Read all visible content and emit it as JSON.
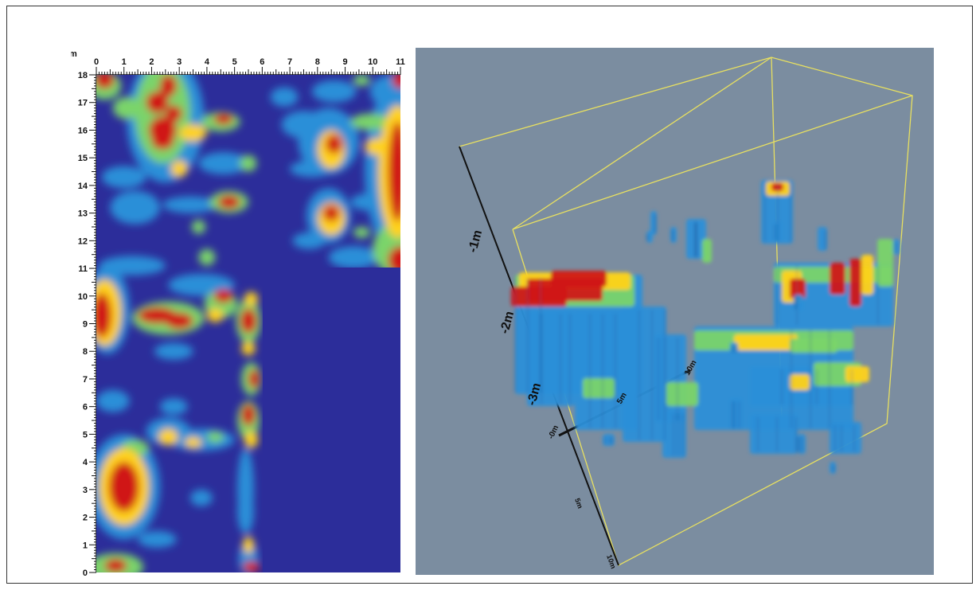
{
  "colors": {
    "background_2d": "#2c2d9a",
    "background_3d": "#7b8da0",
    "bounding_box": "#e8e060",
    "hot": "#d01818",
    "warm": "#ffd21a",
    "mid": "#7ad46a",
    "cool": "#2a8fd8",
    "cold": "#3a4bbf"
  },
  "slice_map": {
    "unit_label": "m",
    "x_tick_labels": [
      "0",
      "1",
      "2",
      "3",
      "4",
      "5",
      "6",
      "7",
      "8",
      "9",
      "10",
      "11"
    ],
    "y_tick_labels": [
      "0",
      "1",
      "2",
      "3",
      "4",
      "5",
      "6",
      "7",
      "8",
      "9",
      "10",
      "11",
      "12",
      "13",
      "14",
      "15",
      "16",
      "17",
      "18"
    ],
    "x_range": [
      0,
      11
    ],
    "y_range": [
      0,
      18
    ]
  },
  "volume_view": {
    "depth_labels": [
      "-1m",
      "-2m",
      "-3m"
    ],
    "x_axis_labels": [
      "-0m",
      "5m",
      "10m"
    ],
    "floor_labels": [
      "-0m",
      "5m",
      "10m"
    ]
  }
}
